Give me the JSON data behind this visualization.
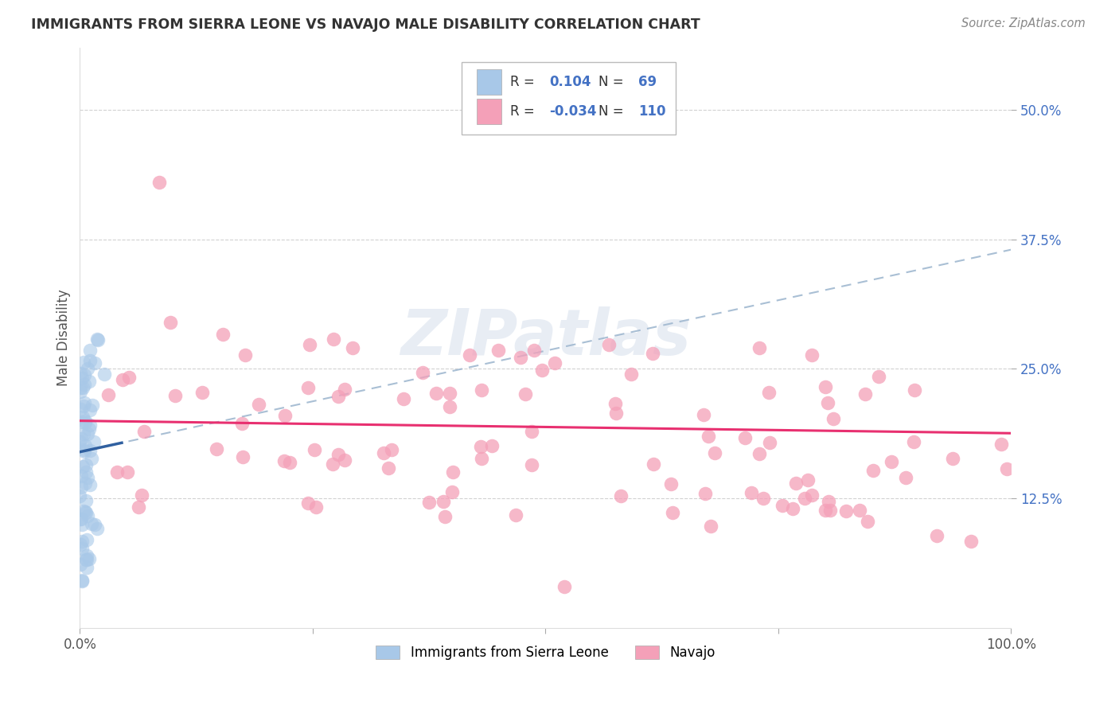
{
  "title": "IMMIGRANTS FROM SIERRA LEONE VS NAVAJO MALE DISABILITY CORRELATION CHART",
  "source": "Source: ZipAtlas.com",
  "ylabel": "Male Disability",
  "xlim": [
    0,
    1.0
  ],
  "ylim": [
    0.0,
    0.56
  ],
  "ytick_positions": [
    0.125,
    0.25,
    0.375,
    0.5
  ],
  "ytick_labels": [
    "12.5%",
    "25.0%",
    "37.5%",
    "50.0%"
  ],
  "r1": 0.104,
  "n1": 69,
  "r2": -0.034,
  "n2": 110,
  "color_blue": "#a8c8e8",
  "color_pink": "#f4a0b8",
  "color_blue_line": "#3060a0",
  "color_pink_line": "#e83070",
  "color_dashed": "#a0b8d0",
  "watermark": "ZIPatlas",
  "seed": 12345
}
